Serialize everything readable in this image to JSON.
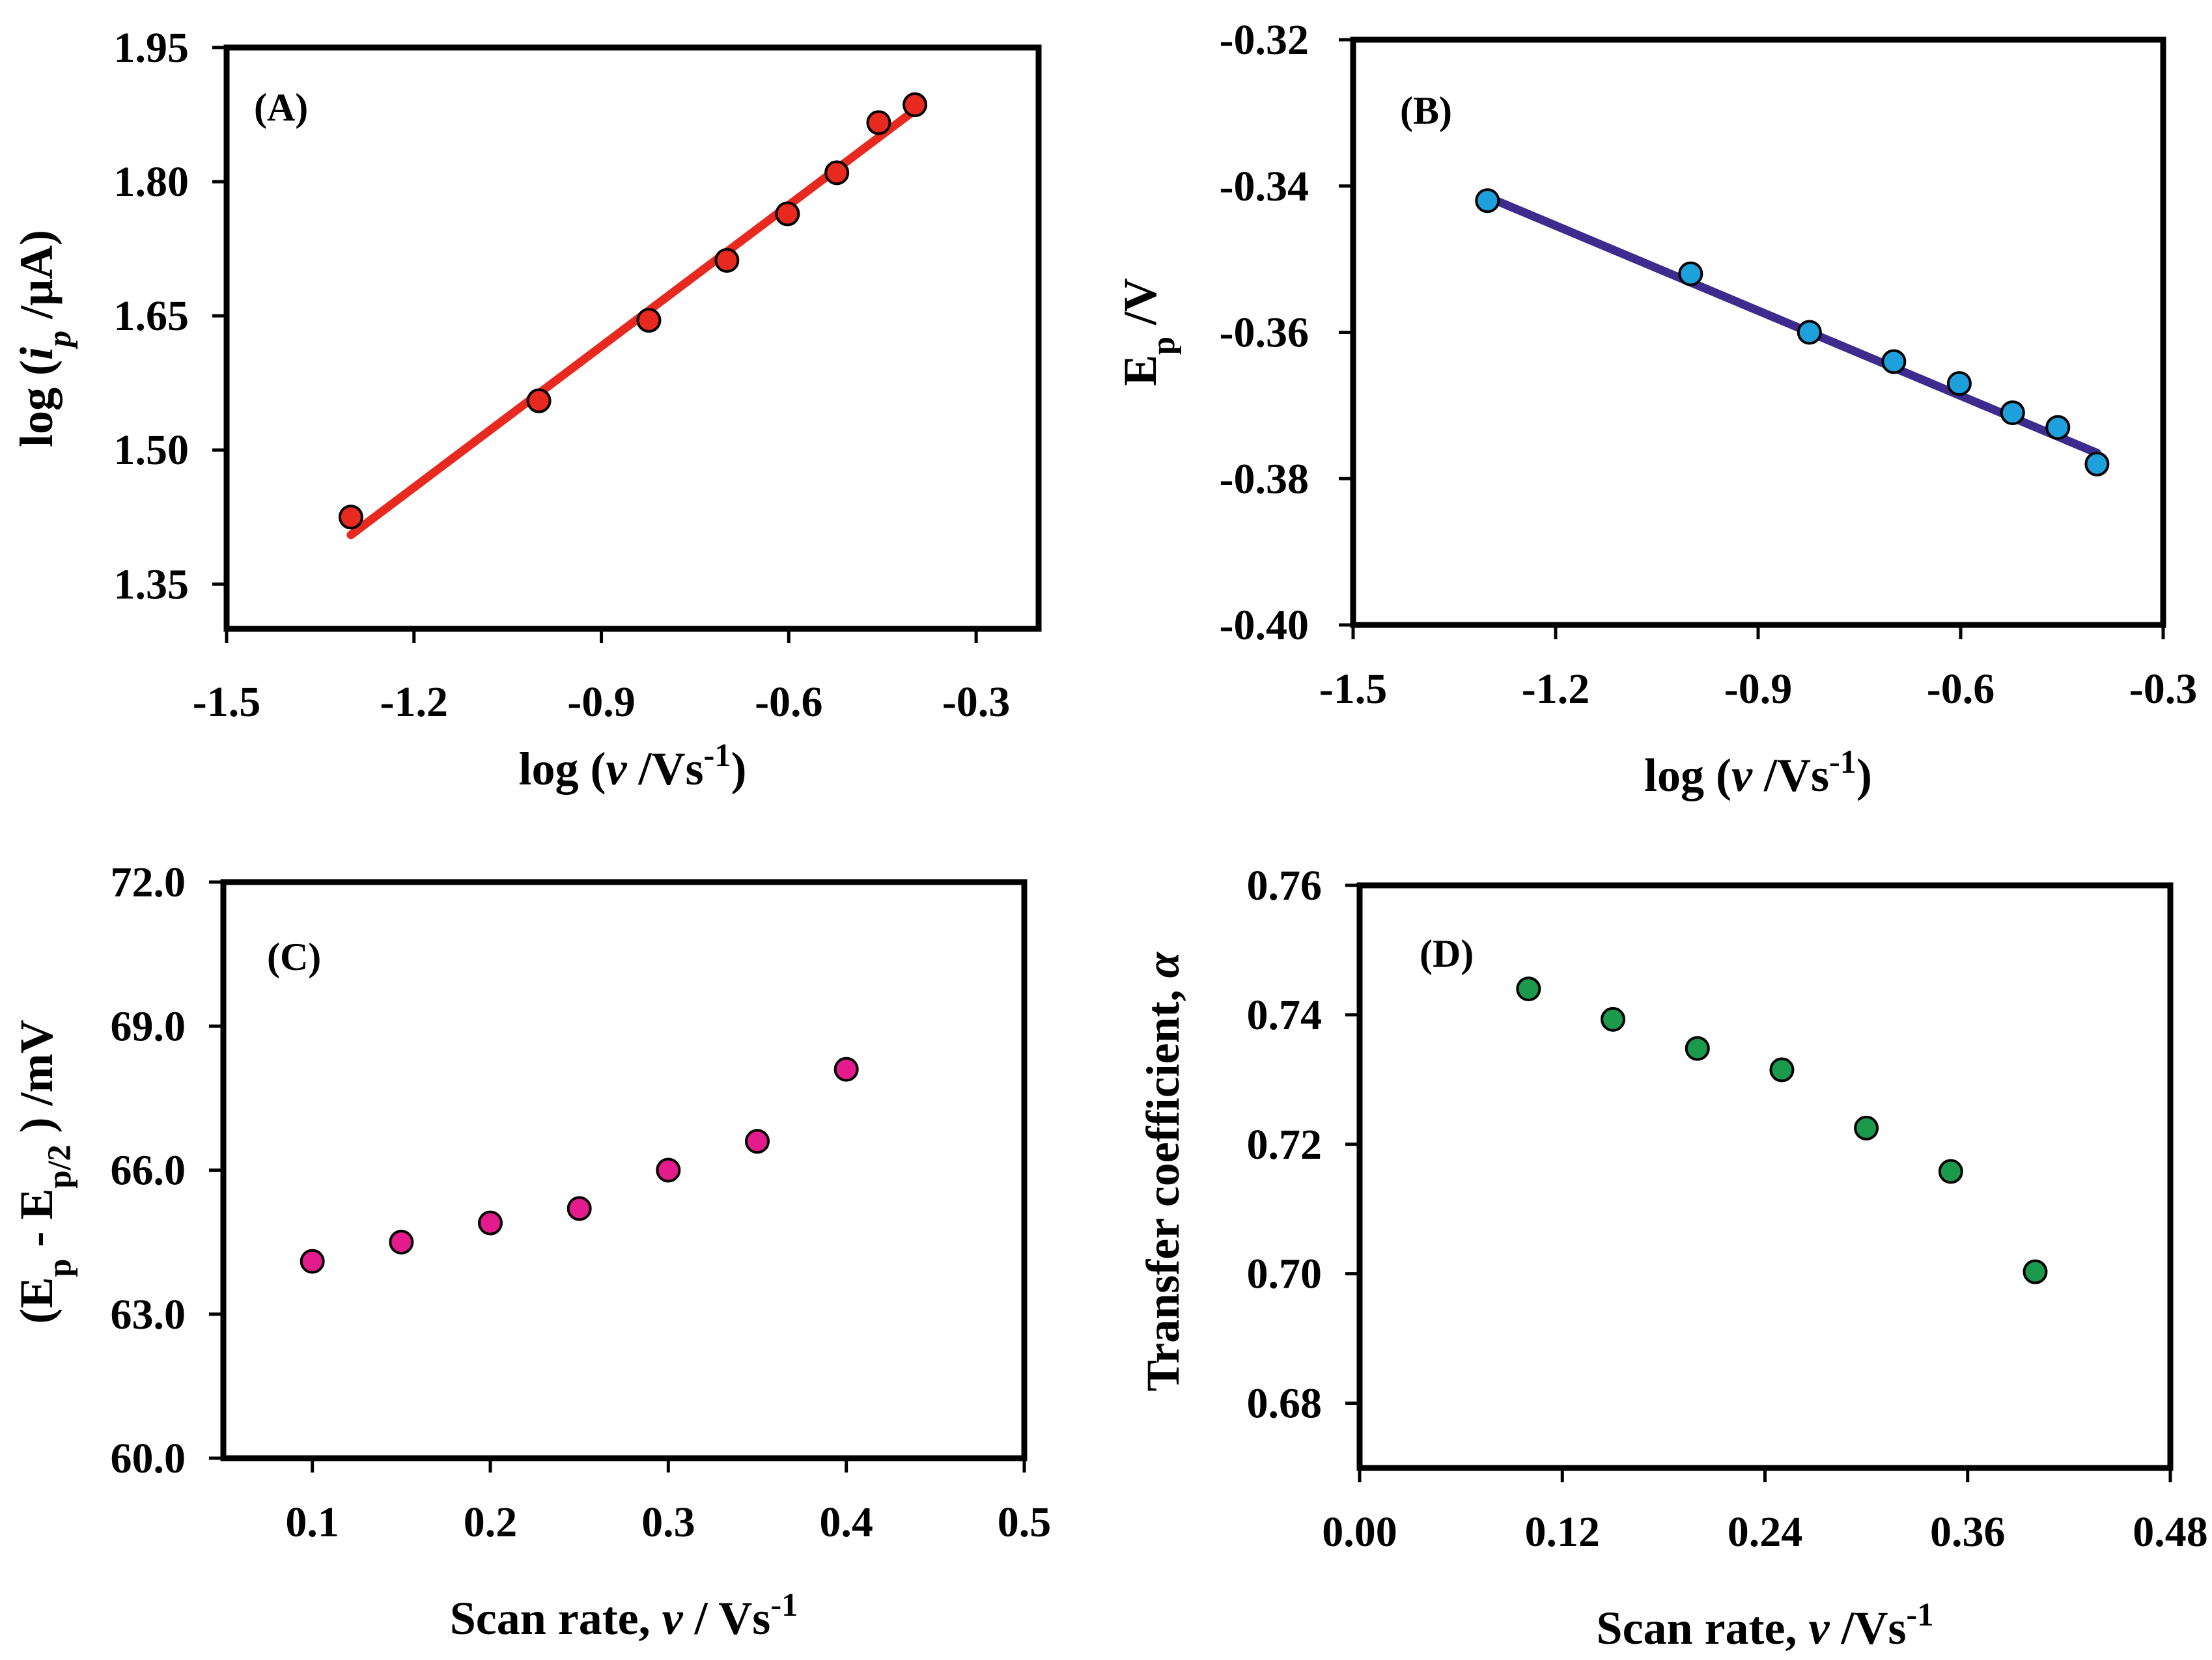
{
  "chart_data": [
    {
      "panel": "(A)",
      "type": "scatter",
      "xlabel_parts": [
        "log (",
        "v",
        " /Vs",
        "-1",
        ")"
      ],
      "ylabel_parts": [
        "log (",
        "i",
        "p",
        " /μA)"
      ],
      "xlim": [
        -1.5,
        -0.2
      ],
      "ylim": [
        1.3,
        1.95
      ],
      "xticks": [
        -1.5,
        -1.2,
        -0.9,
        -0.6,
        -0.3
      ],
      "xtick_labels": [
        "-1.5",
        "-1.2",
        "-0.9",
        "-0.6",
        "-0.3"
      ],
      "yticks": [
        1.35,
        1.5,
        1.65,
        1.8,
        1.95
      ],
      "ytick_labels": [
        "1.35",
        "1.50",
        "1.65",
        "1.80",
        "1.95"
      ],
      "x": [
        -1.301,
        -1.0,
        -0.824,
        -0.699,
        -0.602,
        -0.523,
        -0.456,
        -0.398
      ],
      "y": [
        1.425,
        1.555,
        1.645,
        1.712,
        1.764,
        1.81,
        1.866,
        1.886
      ],
      "fit_line": {
        "x": [
          -1.301,
          -0.398
        ],
        "y": [
          1.405,
          1.88
        ]
      },
      "marker_color": "#e8291f",
      "line_color": "#e8291f"
    },
    {
      "panel": "(B)",
      "type": "scatter",
      "xlabel_parts": [
        "log (",
        "v",
        " /Vs",
        "-1",
        ")"
      ],
      "ylabel_parts": [
        "E",
        "p",
        " /V"
      ],
      "xlim": [
        -1.5,
        -0.3
      ],
      "ylim": [
        -0.4,
        -0.32
      ],
      "xticks": [
        -1.5,
        -1.2,
        -0.9,
        -0.6,
        -0.3
      ],
      "xtick_labels": [
        "-1.5",
        "-1.2",
        "-0.9",
        "-0.6",
        "-0.3"
      ],
      "yticks": [
        -0.4,
        -0.38,
        -0.36,
        -0.34,
        -0.32
      ],
      "ytick_labels": [
        "-0.40",
        "-0.38",
        "-0.36",
        "-0.34",
        "-0.32"
      ],
      "x": [
        -1.301,
        -1.0,
        -0.824,
        -0.699,
        -0.602,
        -0.523,
        -0.456,
        -0.398
      ],
      "y": [
        -0.342,
        -0.352,
        -0.36,
        -0.364,
        -0.367,
        -0.371,
        -0.373,
        -0.378
      ],
      "fit_line": {
        "x": [
          -1.301,
          -0.398
        ],
        "y": [
          -0.3415,
          -0.3765
        ]
      },
      "marker_color": "#1ea0dd",
      "line_color": "#3d2c8d"
    },
    {
      "panel": "(C)",
      "type": "scatter",
      "xlabel_parts": [
        "Scan rate, ",
        "v",
        " / Vs",
        "-1",
        ""
      ],
      "ylabel_parts": [
        "(E",
        "p",
        " - E",
        "p/2",
        " ) /mV"
      ],
      "xlim": [
        0.05,
        0.5
      ],
      "ylim": [
        60.0,
        72.0
      ],
      "xticks": [
        0.1,
        0.2,
        0.3,
        0.4,
        0.5
      ],
      "xtick_labels": [
        "0.1",
        "0.2",
        "0.3",
        "0.4",
        "0.5"
      ],
      "yticks": [
        60.0,
        63.0,
        66.0,
        69.0,
        72.0
      ],
      "ytick_labels": [
        "60.0",
        "63.0",
        "66.0",
        "69.0",
        "72.0"
      ],
      "x": [
        0.1,
        0.15,
        0.2,
        0.25,
        0.3,
        0.35,
        0.4
      ],
      "y": [
        64.1,
        64.5,
        64.9,
        65.2,
        66.0,
        66.6,
        68.1
      ],
      "marker_color": "#e31b8c"
    },
    {
      "panel": "(D)",
      "type": "scatter",
      "xlabel_parts": [
        "Scan rate, ",
        "v",
        " /Vs",
        "-1",
        ""
      ],
      "ylabel_parts": [
        "Transfer coefficient, ",
        "α"
      ],
      "xlim": [
        0.0,
        0.48
      ],
      "ylim": [
        0.67,
        0.76
      ],
      "xticks": [
        0.0,
        0.12,
        0.24,
        0.36,
        0.48
      ],
      "xtick_labels": [
        "0.00",
        "0.12",
        "0.24",
        "0.36",
        "0.48"
      ],
      "yticks": [
        0.68,
        0.7,
        0.72,
        0.74,
        0.76
      ],
      "ytick_labels": [
        "0.68",
        "0.70",
        "0.72",
        "0.74",
        "0.76"
      ],
      "x": [
        0.1,
        0.15,
        0.2,
        0.25,
        0.3,
        0.35,
        0.4
      ],
      "y": [
        0.744,
        0.7393,
        0.7348,
        0.7315,
        0.7225,
        0.7158,
        0.7003
      ],
      "marker_color": "#1a9a4a"
    }
  ]
}
